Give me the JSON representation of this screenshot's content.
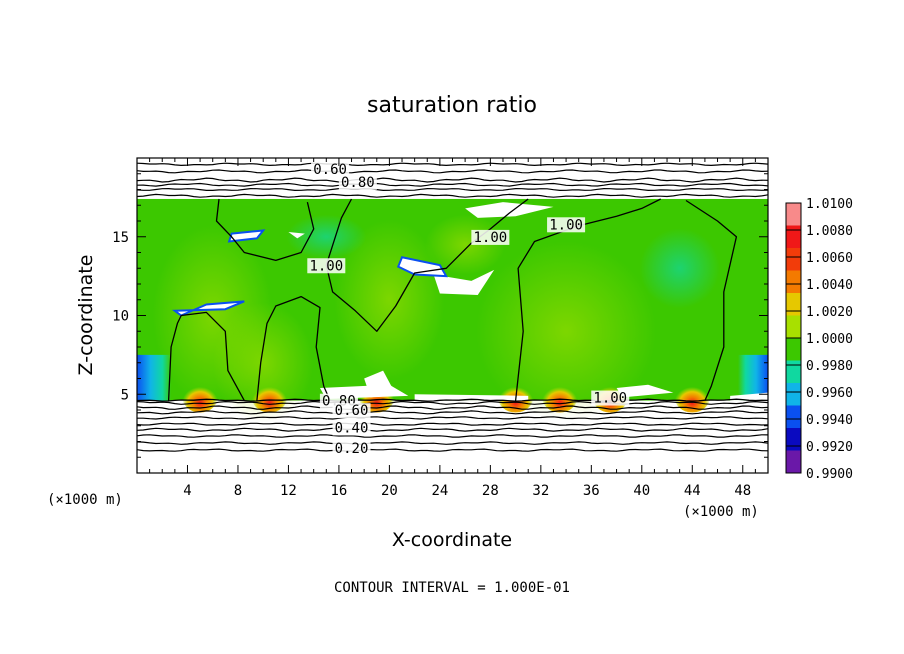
{
  "chart_data": {
    "type": "heatmap",
    "title": "saturation ratio",
    "xlabel": "X-coordinate",
    "ylabel": "Z-coordinate",
    "x_unit": "(×1000 m)",
    "y_unit": "(×1000 m)",
    "xlim": [
      0,
      50
    ],
    "ylim": [
      0,
      20
    ],
    "x_ticks": [
      4,
      8,
      12,
      16,
      20,
      24,
      28,
      32,
      36,
      40,
      44,
      48
    ],
    "y_ticks": [
      5,
      10,
      15
    ],
    "colorbar": {
      "labels": [
        "1.0100",
        "1.0080",
        "1.0060",
        "1.0040",
        "1.0020",
        "1.0000",
        "0.9980",
        "0.9960",
        "0.9940",
        "0.9920",
        "0.9900"
      ],
      "colors": [
        "#f88a8a",
        "#f01818",
        "#f23c0a",
        "#f47a00",
        "#e6c800",
        "#a8e000",
        "#3cc800",
        "#10d8a0",
        "#10b4e8",
        "#0a50f0",
        "#0a0ac0",
        "#6a18a8"
      ]
    },
    "saturated_region": {
      "z_bottom": 4.6,
      "z_top": 17.4
    },
    "contour_labels": [
      {
        "text": "0.60",
        "x": 15.3,
        "z": 19.1
      },
      {
        "text": "0.80",
        "x": 17.5,
        "z": 18.3
      },
      {
        "text": "1.00",
        "x": 34.0,
        "z": 15.6
      },
      {
        "text": "1.00",
        "x": 28.0,
        "z": 14.8
      },
      {
        "text": "1.00",
        "x": 15.0,
        "z": 13.0
      },
      {
        "text": "1.00",
        "x": 37.5,
        "z": 4.6
      },
      {
        "text": "0.80",
        "x": 16.0,
        "z": 4.4
      },
      {
        "text": "0.60",
        "x": 17.0,
        "z": 3.8
      },
      {
        "text": "0.40",
        "x": 17.0,
        "z": 2.7
      },
      {
        "text": "0.20",
        "x": 17.0,
        "z": 1.4
      }
    ],
    "contour_interval_note": "CONTOUR INTERVAL = 1.000E-01"
  }
}
